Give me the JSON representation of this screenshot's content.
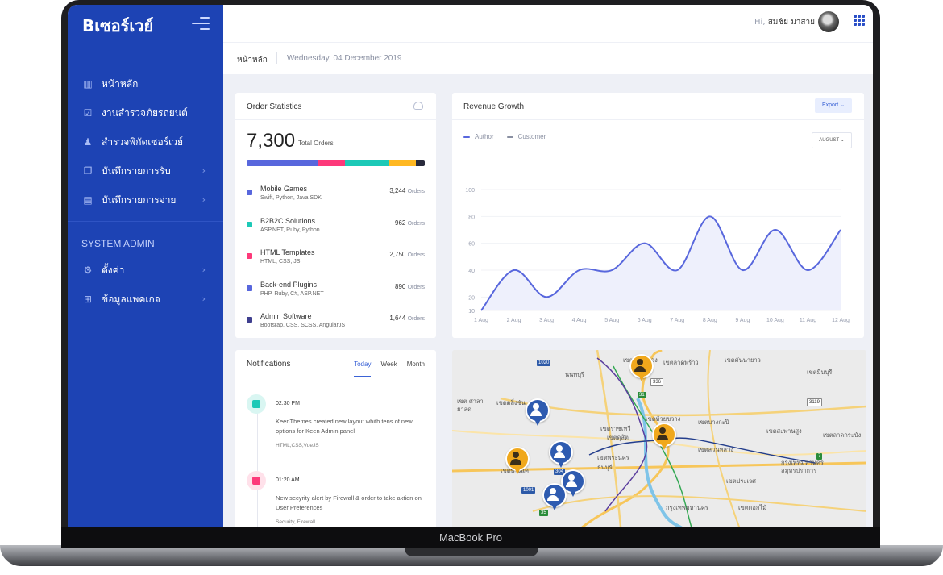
{
  "device_label": "MacBook Pro",
  "brand": {
    "logo_text": "Bเซอร์เวย์",
    "accent": "#1d43b4"
  },
  "sidebar": {
    "items": [
      {
        "label": "หน้าหลัก",
        "icon": "bar-chart-icon",
        "has_children": false
      },
      {
        "label": "งานสำรวจภัยรถยนต์",
        "icon": "checkbox-icon",
        "has_children": false
      },
      {
        "label": "สำรวจพิกัดเซอร์เวย์",
        "icon": "location-person-icon",
        "has_children": false
      },
      {
        "label": "บันทึกรายการรับ",
        "icon": "copy-icon",
        "has_children": true
      },
      {
        "label": "บันทึกรายการจ่าย",
        "icon": "list-icon",
        "has_children": true
      }
    ],
    "section_title": "SYSTEM ADMIN",
    "admin_items": [
      {
        "label": "ตั้งค่า",
        "icon": "gear-icon",
        "has_children": true
      },
      {
        "label": "ข้อมูลแพคเกจ",
        "icon": "gift-icon",
        "has_children": true
      }
    ]
  },
  "topbar": {
    "greeting": "Hi,",
    "user_name": "สมชัย มาสาย"
  },
  "subheader": {
    "breadcrumb": "หน้าหลัก",
    "date": "Wednesday, 04 December 2019"
  },
  "order_stats": {
    "title": "Order Statistics",
    "total": "7,300",
    "total_label": "Total Orders",
    "bar_segments": [
      {
        "color": "#5867dd",
        "share": 0.4
      },
      {
        "color": "#fd397a",
        "share": 0.15
      },
      {
        "color": "#1dc9b7",
        "share": 0.25
      },
      {
        "color": "#ffb822",
        "share": 0.15
      },
      {
        "color": "#282a3c",
        "share": 0.05
      }
    ],
    "rows": [
      {
        "name": "Mobile Games",
        "tech": "Swift, Python, Java SDK",
        "count": "3,244",
        "unit": "Orders",
        "color": "#5867dd"
      },
      {
        "name": "B2B2C Solutions",
        "tech": "ASP.NET, Ruby, Python",
        "count": "962",
        "unit": "Orders",
        "color": "#1dc9b7"
      },
      {
        "name": "HTML Templates",
        "tech": "HTML, CSS, JS",
        "count": "2,750",
        "unit": "Orders",
        "color": "#fd397a"
      },
      {
        "name": "Back-end Plugins",
        "tech": "PHP, Ruby, C#, ASP.NET",
        "count": "890",
        "unit": "Orders",
        "color": "#5867dd"
      },
      {
        "name": "Admin Software",
        "tech": "Bootsrap, CSS, SCSS, AngularJS",
        "count": "1,644",
        "unit": "Orders",
        "color": "#3f3f8f"
      }
    ]
  },
  "revenue": {
    "title": "Revenue Growth",
    "export_label": "Export",
    "month_label": "AUGUST",
    "legend": [
      {
        "label": "Author",
        "color": "#5867dd"
      },
      {
        "label": "Customer",
        "color": "#8a90a2"
      }
    ]
  },
  "chart_data": {
    "type": "area",
    "title": "Revenue Growth",
    "categories": [
      "1 Aug",
      "2 Aug",
      "3 Aug",
      "4 Aug",
      "5 Aug",
      "6 Aug",
      "7 Aug",
      "8 Aug",
      "9 Aug",
      "10 Aug",
      "11 Aug",
      "12 Aug"
    ],
    "series": [
      {
        "name": "Author",
        "values": [
          10,
          40,
          20,
          40,
          40,
          60,
          40,
          80,
          40,
          70,
          40,
          70
        ]
      }
    ],
    "yticks": [
      10,
      20,
      40,
      60,
      80,
      100
    ],
    "ylim": [
      10,
      100
    ],
    "grid": true,
    "legend_position": "top-left"
  },
  "notifications": {
    "title": "Notifications",
    "tabs": [
      "Today",
      "Week",
      "Month"
    ],
    "active_tab": 0,
    "items": [
      {
        "time": "02:30 PM",
        "text": "KeenThemes created new layout whith tens of new options for Keen Admin panel",
        "tags": "HTML,CSS,VueJS",
        "color": "#1dc9b7"
      },
      {
        "time": "01:20 AM",
        "text": "New secyrity alert by Firewall & order to take aktion on User Preferences",
        "tags": "Security, Firewall",
        "color": "#fd397a"
      }
    ]
  },
  "map": {
    "labels": [
      "เขตดอนเมือง",
      "เขตลาดพร้าว",
      "เขตคันนายาว",
      "เขตมีนบุรี",
      "เขตวังทองหลาง",
      "นนทบุรี",
      "เขต ศาลา",
      "ยาสด",
      "เขตตลิ่งชัน",
      "เขตพุทธมณฑล",
      "เขตบางกะปิ",
      "เขตสะพานสูง",
      "เขตลาดกระบัง",
      "เขตห้วยขวาง",
      "เขตราชเทวี",
      "เขตดุสิต",
      "เขตบางแค",
      "เขตบางนา",
      "เขตประเวศ",
      "เขตดอกไม้",
      "กรุงเทพมหานคร",
      "ธนบุรี",
      "กรุงเทพมหานคร สมุทรปราการ",
      "เขตสวนหลวง",
      "เขตพระนคร"
    ],
    "road_numbers": [
      "1020",
      "336",
      "31",
      "3119",
      "304",
      "338",
      "1001",
      "35",
      "7"
    ]
  }
}
